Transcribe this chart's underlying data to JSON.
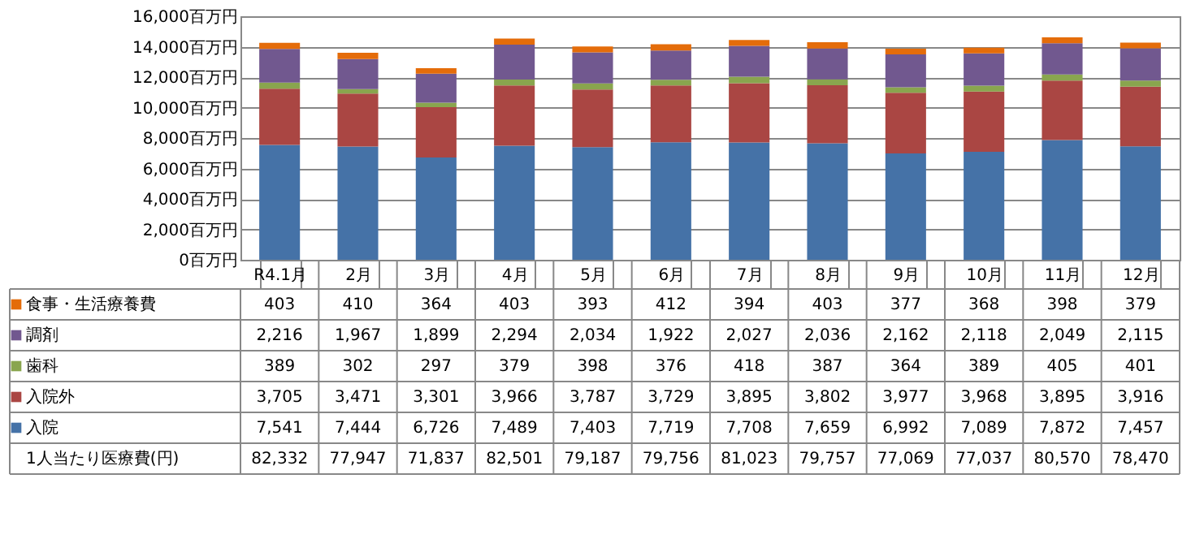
{
  "chart_data": {
    "type": "bar",
    "stacked": true,
    "categories": [
      "R4.1月",
      "2月",
      "3月",
      "4月",
      "5月",
      "6月",
      "7月",
      "8月",
      "9月",
      "10月",
      "11月",
      "12月"
    ],
    "series": [
      {
        "name": "入院",
        "color": "#4572a7",
        "values": [
          7541,
          7444,
          6726,
          7489,
          7403,
          7719,
          7708,
          7659,
          6992,
          7089,
          7872,
          7457
        ],
        "value_labels": [
          "7,541",
          "7,444",
          "6,726",
          "7,489",
          "7,403",
          "7,719",
          "7,708",
          "7,659",
          "6,992",
          "7,089",
          "7,872",
          "7,457"
        ]
      },
      {
        "name": "入院外",
        "color": "#aa4643",
        "values": [
          3705,
          3471,
          3301,
          3966,
          3787,
          3729,
          3895,
          3802,
          3977,
          3968,
          3895,
          3916
        ],
        "value_labels": [
          "3,705",
          "3,471",
          "3,301",
          "3,966",
          "3,787",
          "3,729",
          "3,895",
          "3,802",
          "3,977",
          "3,968",
          "3,895",
          "3,916"
        ]
      },
      {
        "name": "歯科",
        "color": "#89a54e",
        "values": [
          389,
          302,
          297,
          379,
          398,
          376,
          418,
          387,
          364,
          389,
          405,
          401
        ],
        "value_labels": [
          "389",
          "302",
          "297",
          "379",
          "398",
          "376",
          "418",
          "387",
          "364",
          "389",
          "405",
          "401"
        ]
      },
      {
        "name": "調剤",
        "color": "#71588f",
        "values": [
          2216,
          1967,
          1899,
          2294,
          2034,
          1922,
          2027,
          2036,
          2162,
          2118,
          2049,
          2115
        ],
        "value_labels": [
          "2,216",
          "1,967",
          "1,899",
          "2,294",
          "2,034",
          "1,922",
          "2,027",
          "2,036",
          "2,162",
          "2,118",
          "2,049",
          "2,115"
        ]
      },
      {
        "name": "食事・生活療養費",
        "color": "#e46c0a",
        "values": [
          403,
          410,
          364,
          403,
          393,
          412,
          394,
          403,
          377,
          368,
          398,
          379
        ],
        "value_labels": [
          "403",
          "410",
          "364",
          "403",
          "393",
          "412",
          "394",
          "403",
          "377",
          "368",
          "398",
          "379"
        ]
      }
    ],
    "ylim": [
      0,
      16000
    ],
    "yticks": [
      {
        "value": 0,
        "label": "0百万円"
      },
      {
        "value": 2000,
        "label": "2,000百万円"
      },
      {
        "value": 4000,
        "label": "4,000百万円"
      },
      {
        "value": 6000,
        "label": "6,000百万円"
      },
      {
        "value": 8000,
        "label": "8,000百万円"
      },
      {
        "value": 10000,
        "label": "10,000百万円"
      },
      {
        "value": 12000,
        "label": "12,000百万円"
      },
      {
        "value": 14000,
        "label": "14,000百万円"
      },
      {
        "value": 16000,
        "label": "16,000百万円"
      }
    ],
    "grid": "y",
    "legend": "bottom",
    "annotations": [
      "1人当たり医療費(円)",
      "82,332",
      "77,947",
      "71,837",
      "82,501",
      "79,187",
      "79,756",
      "81,023",
      "79,757",
      "77,069",
      "77,037",
      "80,570",
      "78,470"
    ]
  }
}
